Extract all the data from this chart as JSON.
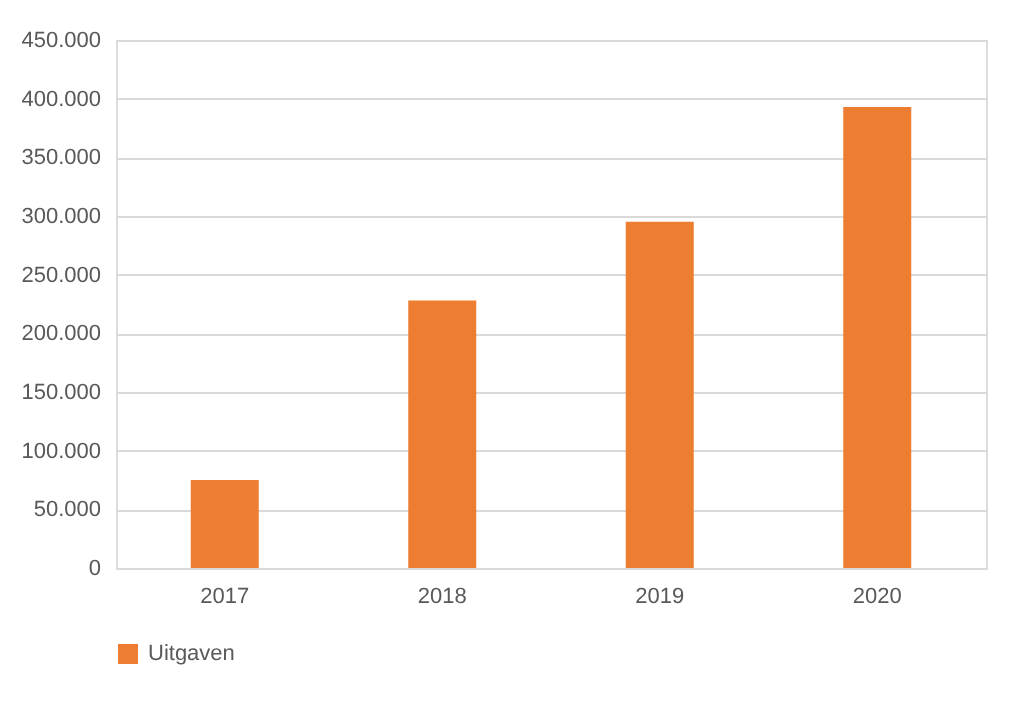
{
  "chart_data": {
    "type": "bar",
    "categories": [
      "2017",
      "2018",
      "2019",
      "2020"
    ],
    "series": [
      {
        "name": "Uitgaven",
        "color": "#ed7d31",
        "values": [
          75000,
          228000,
          295000,
          393000
        ]
      }
    ],
    "ylim": [
      0,
      450000
    ],
    "yticks": [
      {
        "value": 0,
        "label": "0"
      },
      {
        "value": 50000,
        "label": "50.000"
      },
      {
        "value": 100000,
        "label": "100.000"
      },
      {
        "value": 150000,
        "label": "150.000"
      },
      {
        "value": 200000,
        "label": "200.000"
      },
      {
        "value": 250000,
        "label": "250.000"
      },
      {
        "value": 300000,
        "label": "300.000"
      },
      {
        "value": 350000,
        "label": "350.000"
      },
      {
        "value": 400000,
        "label": "400.000"
      },
      {
        "value": 450000,
        "label": "450.000"
      }
    ],
    "grid": "y",
    "legend": "bottom"
  }
}
